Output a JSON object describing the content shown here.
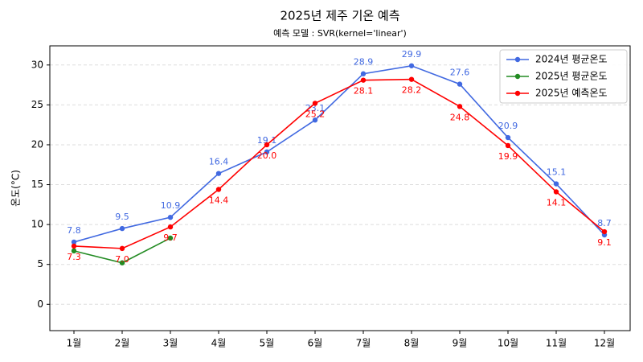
{
  "chart_data": {
    "type": "line",
    "title": "2025년 제주 기온 예측",
    "subtitle": "예측 모델 : SVR(kernel='linear')",
    "y_label": "온도(°C)",
    "categories": [
      "1월",
      "2월",
      "3월",
      "4월",
      "5월",
      "6월",
      "7월",
      "8월",
      "9월",
      "10월",
      "11월",
      "12월"
    ],
    "series": [
      {
        "name": "2024년 평균온도",
        "color": "#4169e1",
        "values": [
          7.8,
          9.5,
          10.9,
          16.4,
          19.1,
          23.1,
          28.9,
          29.9,
          27.6,
          20.9,
          15.1,
          8.7
        ],
        "value_labels": [
          "7.8",
          "9.5",
          "10.9",
          "16.4",
          "19.1",
          "23.1",
          "28.9",
          "29.9",
          "27.6",
          "20.9",
          "15.1",
          "8.7"
        ],
        "label_position": "above"
      },
      {
        "name": "2025년 평균온도",
        "color": "#228b22",
        "values": [
          6.7,
          5.2,
          8.3,
          null,
          null,
          null,
          null,
          null,
          null,
          null,
          null,
          null
        ]
      },
      {
        "name": "2025년 예측온도",
        "color": "#ff0000",
        "values": [
          7.3,
          7.0,
          9.7,
          14.4,
          20.0,
          25.2,
          28.1,
          28.2,
          24.8,
          19.9,
          14.1,
          9.1
        ],
        "value_labels": [
          "7.3",
          "7.0",
          "9.7",
          "14.4",
          "20.0",
          "25.2",
          "28.1",
          "28.2",
          "24.8",
          "19.9",
          "14.1",
          "9.1"
        ],
        "label_position": "below"
      }
    ],
    "ylim": [
      -3.3,
      32.4
    ],
    "yticks": [
      0,
      5,
      10,
      15,
      20,
      25,
      30
    ],
    "grid": true,
    "legend": "upper right"
  }
}
